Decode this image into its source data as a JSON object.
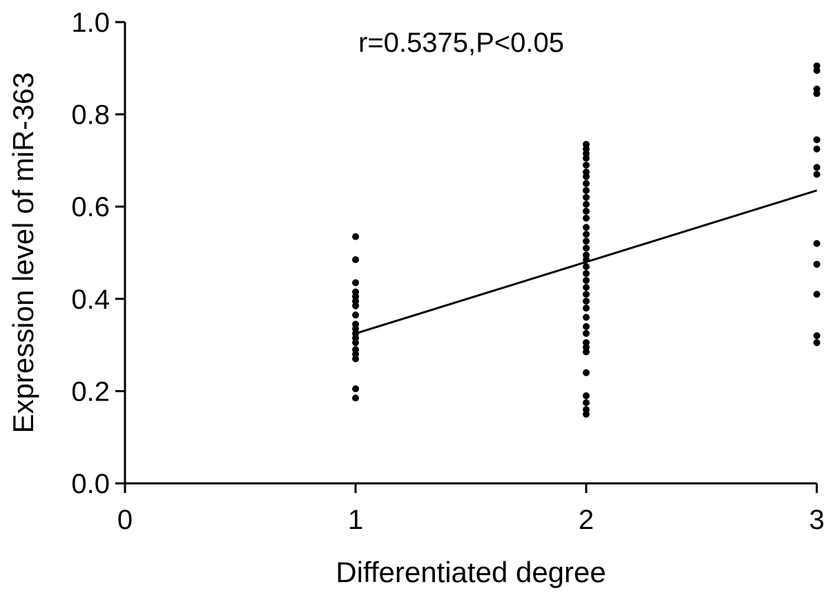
{
  "chart_data": {
    "type": "scatter",
    "title": "",
    "annotation": "r=0.5375,P<0.05",
    "xlabel": "Differentiated degree",
    "ylabel": "Expression level of miR-363",
    "xlim": [
      0,
      3
    ],
    "ylim": [
      0,
      1.0
    ],
    "xticks": [
      0,
      1,
      2,
      3
    ],
    "yticks": [
      "0.0",
      "0.2",
      "0.4",
      "0.6",
      "0.8",
      "1.0"
    ],
    "grid": false,
    "legend": "none",
    "series": [
      {
        "points": [
          [
            1,
            0.535
          ],
          [
            1,
            0.485
          ],
          [
            1,
            0.435
          ],
          [
            1,
            0.415
          ],
          [
            1,
            0.405
          ],
          [
            1,
            0.395
          ],
          [
            1,
            0.385
          ],
          [
            1,
            0.365
          ],
          [
            1,
            0.345
          ],
          [
            1,
            0.335
          ],
          [
            1,
            0.325
          ],
          [
            1,
            0.315
          ],
          [
            1,
            0.305
          ],
          [
            1,
            0.29
          ],
          [
            1,
            0.28
          ],
          [
            1,
            0.27
          ],
          [
            1,
            0.205
          ],
          [
            1,
            0.185
          ],
          [
            2,
            0.735
          ],
          [
            2,
            0.725
          ],
          [
            2,
            0.715
          ],
          [
            2,
            0.705
          ],
          [
            2,
            0.69
          ],
          [
            2,
            0.675
          ],
          [
            2,
            0.665
          ],
          [
            2,
            0.65
          ],
          [
            2,
            0.635
          ],
          [
            2,
            0.62
          ],
          [
            2,
            0.605
          ],
          [
            2,
            0.59
          ],
          [
            2,
            0.575
          ],
          [
            2,
            0.555
          ],
          [
            2,
            0.54
          ],
          [
            2,
            0.525
          ],
          [
            2,
            0.51
          ],
          [
            2,
            0.495
          ],
          [
            2,
            0.485
          ],
          [
            2,
            0.47
          ],
          [
            2,
            0.455
          ],
          [
            2,
            0.44
          ],
          [
            2,
            0.425
          ],
          [
            2,
            0.41
          ],
          [
            2,
            0.395
          ],
          [
            2,
            0.38
          ],
          [
            2,
            0.36
          ],
          [
            2,
            0.34
          ],
          [
            2,
            0.325
          ],
          [
            2,
            0.305
          ],
          [
            2,
            0.295
          ],
          [
            2,
            0.285
          ],
          [
            2,
            0.24
          ],
          [
            2,
            0.19
          ],
          [
            2,
            0.175
          ],
          [
            2,
            0.16
          ],
          [
            2,
            0.15
          ],
          [
            3,
            0.905
          ],
          [
            3,
            0.895
          ],
          [
            3,
            0.855
          ],
          [
            3,
            0.845
          ],
          [
            3,
            0.745
          ],
          [
            3,
            0.725
          ],
          [
            3,
            0.685
          ],
          [
            3,
            0.67
          ],
          [
            3,
            0.52
          ],
          [
            3,
            0.475
          ],
          [
            3,
            0.41
          ],
          [
            3,
            0.32
          ],
          [
            3,
            0.305
          ]
        ]
      }
    ],
    "fit_line": {
      "x": [
        1,
        3
      ],
      "y": [
        0.325,
        0.635
      ]
    }
  }
}
